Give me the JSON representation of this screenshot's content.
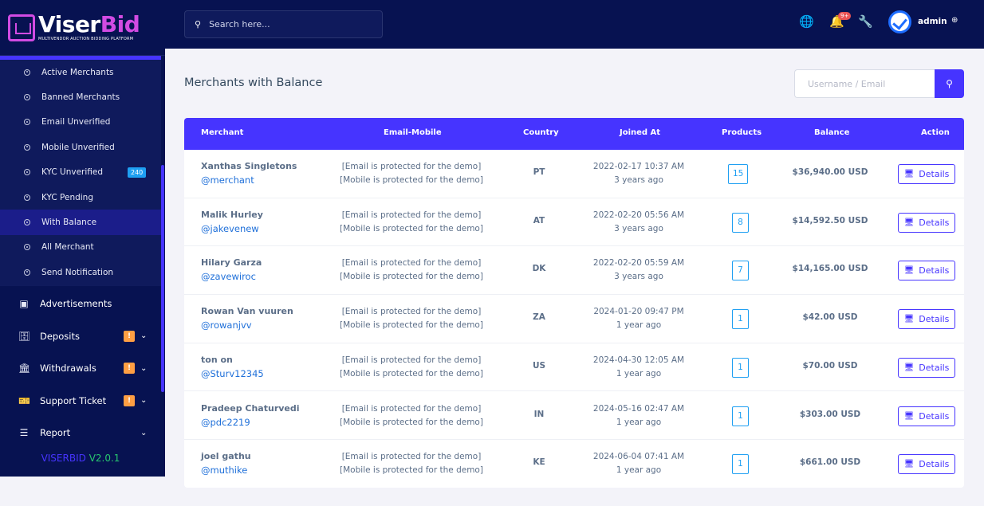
{
  "brand": {
    "name_a": "Viser",
    "name_b": "Bid",
    "tagline": "MULTIVENDOR AUCTION BIDDING PLATFORM",
    "version_a": "VISERBID",
    "version_b": "V2.0.1"
  },
  "sidebar": {
    "submenu": [
      {
        "label": "Active Merchants"
      },
      {
        "label": "Banned Merchants"
      },
      {
        "label": "Email Unverified"
      },
      {
        "label": "Mobile Unverified"
      },
      {
        "label": "KYC Unverified",
        "badge": "240"
      },
      {
        "label": "KYC Pending"
      },
      {
        "label": "With Balance",
        "active": true
      },
      {
        "label": "All Merchant"
      },
      {
        "label": "Send Notification"
      }
    ],
    "menu": [
      {
        "label": "Advertisements",
        "icon": "ad-icon"
      },
      {
        "label": "Deposits",
        "icon": "deposit-icon",
        "badge": "!"
      },
      {
        "label": "Withdrawals",
        "icon": "bank-icon",
        "badge": "!"
      },
      {
        "label": "Support Ticket",
        "icon": "ticket-icon",
        "badge": "!"
      },
      {
        "label": "Report",
        "icon": "list-icon"
      }
    ]
  },
  "topbar": {
    "search_placeholder": "Search here...",
    "notif_badge": "9+",
    "user": "admin"
  },
  "main": {
    "title": "Merchants with Balance",
    "filter_placeholder": "Username / Email",
    "columns": [
      "Merchant",
      "Email-Mobile",
      "Country",
      "Joined At",
      "Products",
      "Balance",
      "Action"
    ],
    "rows": [
      {
        "name": "Xanthas Singletons",
        "username": "@merchant",
        "email": "[Email is protected for the demo]",
        "mobile": "[Mobile is protected for the demo]",
        "country": "PT",
        "joined": "2022-02-17 10:37 AM",
        "ago": "3 years ago",
        "products": "15",
        "balance": "$36,940.00 USD",
        "action": "Details"
      },
      {
        "name": "Malik Hurley",
        "username": "@jakevenew",
        "email": "[Email is protected for the demo]",
        "mobile": "[Mobile is protected for the demo]",
        "country": "AT",
        "joined": "2022-02-20 05:56 AM",
        "ago": "3 years ago",
        "products": "8",
        "balance": "$14,592.50 USD",
        "action": "Details"
      },
      {
        "name": "Hilary Garza",
        "username": "@zavewiroc",
        "email": "[Email is protected for the demo]",
        "mobile": "[Mobile is protected for the demo]",
        "country": "DK",
        "joined": "2022-02-20 05:59 AM",
        "ago": "3 years ago",
        "products": "7",
        "balance": "$14,165.00 USD",
        "action": "Details"
      },
      {
        "name": "Rowan Van vuuren",
        "username": "@rowanjvv",
        "email": "[Email is protected for the demo]",
        "mobile": "[Mobile is protected for the demo]",
        "country": "ZA",
        "joined": "2024-01-20 09:47 PM",
        "ago": "1 year ago",
        "products": "1",
        "balance": "$42.00 USD",
        "action": "Details"
      },
      {
        "name": "ton on",
        "username": "@Sturv12345",
        "email": "[Email is protected for the demo]",
        "mobile": "[Mobile is protected for the demo]",
        "country": "US",
        "joined": "2024-04-30 12:05 AM",
        "ago": "1 year ago",
        "products": "1",
        "balance": "$70.00 USD",
        "action": "Details"
      },
      {
        "name": "Pradeep Chaturvedi",
        "username": "@pdc2219",
        "email": "[Email is protected for the demo]",
        "mobile": "[Mobile is protected for the demo]",
        "country": "IN",
        "joined": "2024-05-16 02:47 AM",
        "ago": "1 year ago",
        "products": "1",
        "balance": "$303.00 USD",
        "action": "Details"
      },
      {
        "name": "joel gathu",
        "username": "@muthike",
        "email": "[Email is protected for the demo]",
        "mobile": "[Mobile is protected for the demo]",
        "country": "KE",
        "joined": "2024-06-04 07:41 AM",
        "ago": "1 year ago",
        "products": "1",
        "balance": "$661.00 USD",
        "action": "Details"
      }
    ]
  }
}
